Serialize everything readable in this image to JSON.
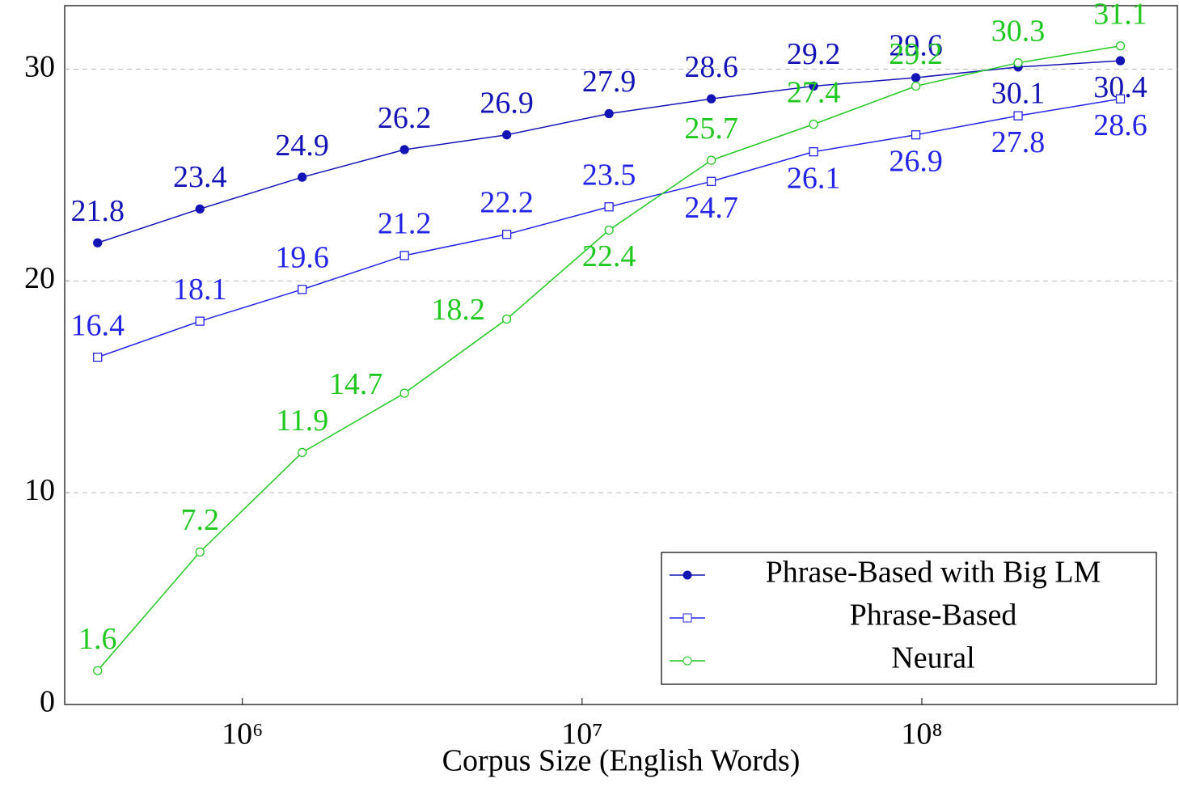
{
  "chart_data": {
    "type": "line",
    "xlabel": "Corpus Size (English Words)",
    "x": [
      375000,
      750000,
      1500000,
      3000000,
      6000000,
      12000000,
      24000000,
      48000000,
      96000000,
      192000000,
      384000000
    ],
    "xscale": "log",
    "xlim": [
      300000,
      565000000
    ],
    "xticks": [
      {
        "value": 1000000,
        "label": "10⁶"
      },
      {
        "value": 10000000,
        "label": "10⁷"
      },
      {
        "value": 100000000,
        "label": "10⁸"
      }
    ],
    "ylim": [
      0,
      33
    ],
    "yticks": [
      0,
      10,
      20,
      30
    ],
    "grid": "y",
    "legend": "lower right",
    "series": [
      {
        "name": "Phrase-Based with Big LM",
        "color": "#1414b4",
        "marker": "filled-circle",
        "values": [
          21.8,
          23.4,
          24.9,
          26.2,
          26.9,
          27.9,
          28.6,
          29.2,
          29.6,
          30.1,
          30.4
        ]
      },
      {
        "name": "Phrase-Based",
        "color": "#2424e6",
        "marker": "open-square",
        "values": [
          16.4,
          18.1,
          19.6,
          21.2,
          22.2,
          23.5,
          24.7,
          26.1,
          26.9,
          27.8,
          28.6
        ]
      },
      {
        "name": "Neural",
        "color": "#22c822",
        "marker": "open-circle",
        "values": [
          1.6,
          7.2,
          11.9,
          14.7,
          18.2,
          22.4,
          25.7,
          27.4,
          29.2,
          30.3,
          31.1
        ]
      }
    ]
  }
}
